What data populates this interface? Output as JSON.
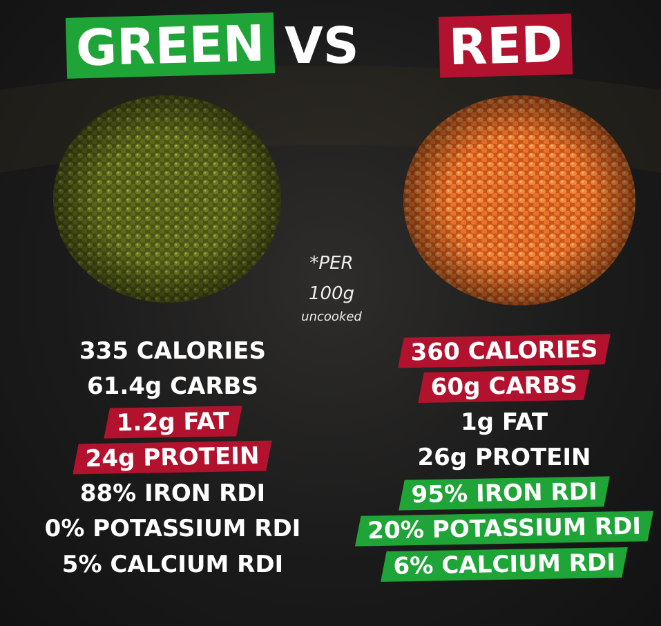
{
  "header": {
    "left": "GREEN",
    "middle": "VS",
    "right": "RED"
  },
  "note": {
    "line1": "*PER",
    "line2": "100g",
    "line3": "uncooked"
  },
  "left_items": [
    {
      "text": "335 CALORIES"
    },
    {
      "text": "61.4g CARBS"
    },
    {
      "text": "1.2g FAT",
      "highlight": "#b3122e"
    },
    {
      "text": "24g PROTEIN",
      "highlight": "#b3122e"
    },
    {
      "text": "88% IRON RDI"
    },
    {
      "text": "0% POTASSIUM RDI"
    },
    {
      "text": "5% CALCIUM RDI"
    }
  ],
  "right_items": [
    {
      "text": "360 CALORIES",
      "highlight": "#b3122e"
    },
    {
      "text": "60g CARBS",
      "highlight": "#b3122e"
    },
    {
      "text": "1g FAT"
    },
    {
      "text": "26g PROTEIN"
    },
    {
      "text": "95% IRON RDI",
      "highlight": "#1fa437"
    },
    {
      "text": "20% POTASSIUM RDI",
      "highlight": "#1fa437"
    },
    {
      "text": "6% CALCIUM RDI",
      "highlight": "#1fa437"
    }
  ]
}
